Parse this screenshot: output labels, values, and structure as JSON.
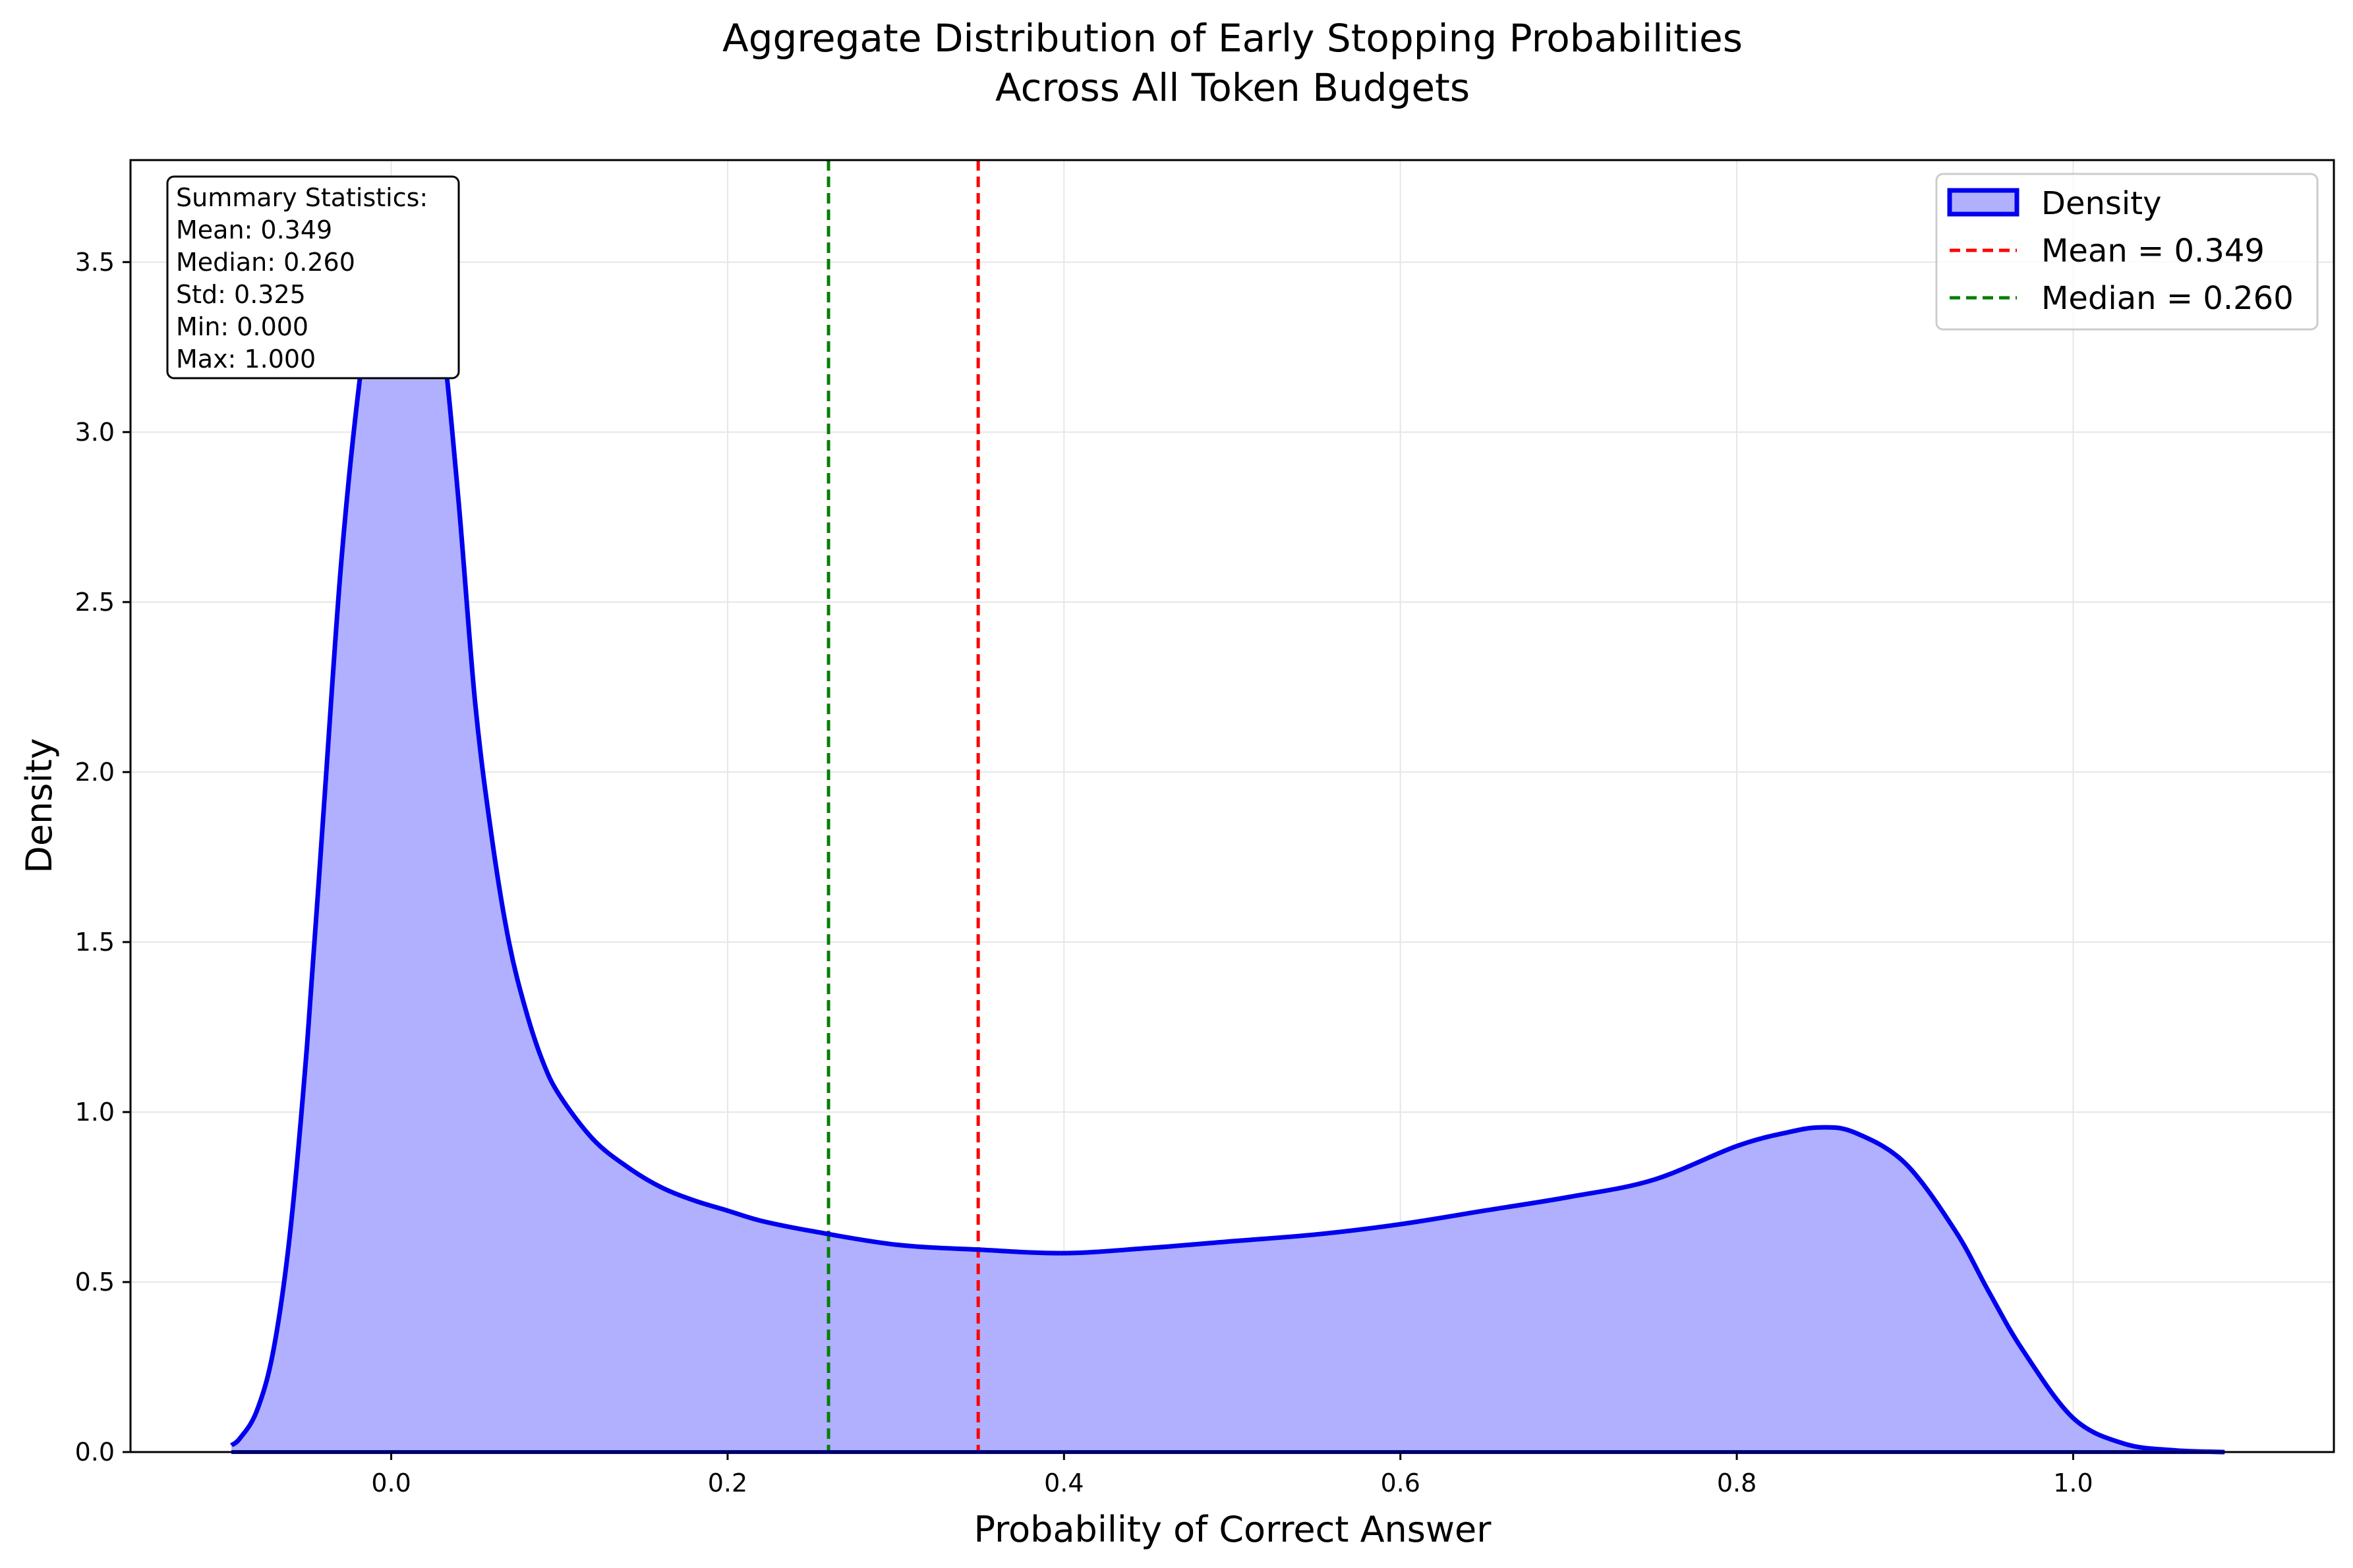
{
  "chart_data": {
    "type": "area",
    "title": "Aggregate Distribution of Early Stopping Probabilities",
    "subtitle": "Across All Token Budgets",
    "xlabel": "Probability of Correct Answer",
    "ylabel": "Density",
    "xlim": [
      -0.155,
      1.155
    ],
    "ylim": [
      0,
      3.8
    ],
    "xticks": [
      0.0,
      0.2,
      0.4,
      0.6,
      0.8,
      1.0
    ],
    "xtick_labels": [
      "0.0",
      "0.2",
      "0.4",
      "0.6",
      "0.8",
      "1.0"
    ],
    "yticks": [
      0.0,
      0.5,
      1.0,
      1.5,
      2.0,
      2.5,
      3.0,
      3.5
    ],
    "ytick_labels": [
      "0.0",
      "0.5",
      "1.0",
      "1.5",
      "2.0",
      "2.5",
      "3.0",
      "3.5"
    ],
    "grid": true,
    "legend_position": "top-right",
    "series": [
      {
        "name": "Density",
        "color": "#0000ee",
        "fill_color": "#b0b0ff",
        "x": [
          -0.095,
          -0.09,
          -0.08,
          -0.07,
          -0.06,
          -0.05,
          -0.04,
          -0.03,
          -0.02,
          -0.01,
          0.0,
          0.01,
          0.015,
          0.02,
          0.03,
          0.04,
          0.05,
          0.06,
          0.07,
          0.08,
          0.09,
          0.1,
          0.12,
          0.14,
          0.16,
          0.18,
          0.2,
          0.22,
          0.25,
          0.3,
          0.35,
          0.4,
          0.45,
          0.5,
          0.55,
          0.6,
          0.65,
          0.7,
          0.75,
          0.8,
          0.83,
          0.85,
          0.87,
          0.9,
          0.93,
          0.95,
          0.97,
          1.0,
          1.03,
          1.06,
          1.09
        ],
        "y": [
          0.02,
          0.04,
          0.12,
          0.3,
          0.65,
          1.2,
          1.9,
          2.6,
          3.1,
          3.45,
          3.58,
          3.6,
          3.62,
          3.58,
          3.3,
          2.8,
          2.2,
          1.8,
          1.5,
          1.3,
          1.15,
          1.05,
          0.92,
          0.84,
          0.78,
          0.74,
          0.71,
          0.68,
          0.65,
          0.61,
          0.595,
          0.585,
          0.6,
          0.62,
          0.64,
          0.67,
          0.71,
          0.75,
          0.8,
          0.9,
          0.94,
          0.955,
          0.94,
          0.85,
          0.65,
          0.47,
          0.3,
          0.1,
          0.025,
          0.005,
          0.0
        ]
      }
    ],
    "reference_lines": [
      {
        "name": "Mean = 0.349",
        "x": 0.349,
        "color": "#ff0000"
      },
      {
        "name": "Median = 0.260",
        "x": 0.26,
        "color": "#008000"
      }
    ],
    "annotation": {
      "lines": [
        "Summary Statistics:",
        "Mean: 0.349",
        "Median: 0.260",
        "Std: 0.325",
        "Min: 0.000",
        "Max: 1.000"
      ]
    }
  }
}
